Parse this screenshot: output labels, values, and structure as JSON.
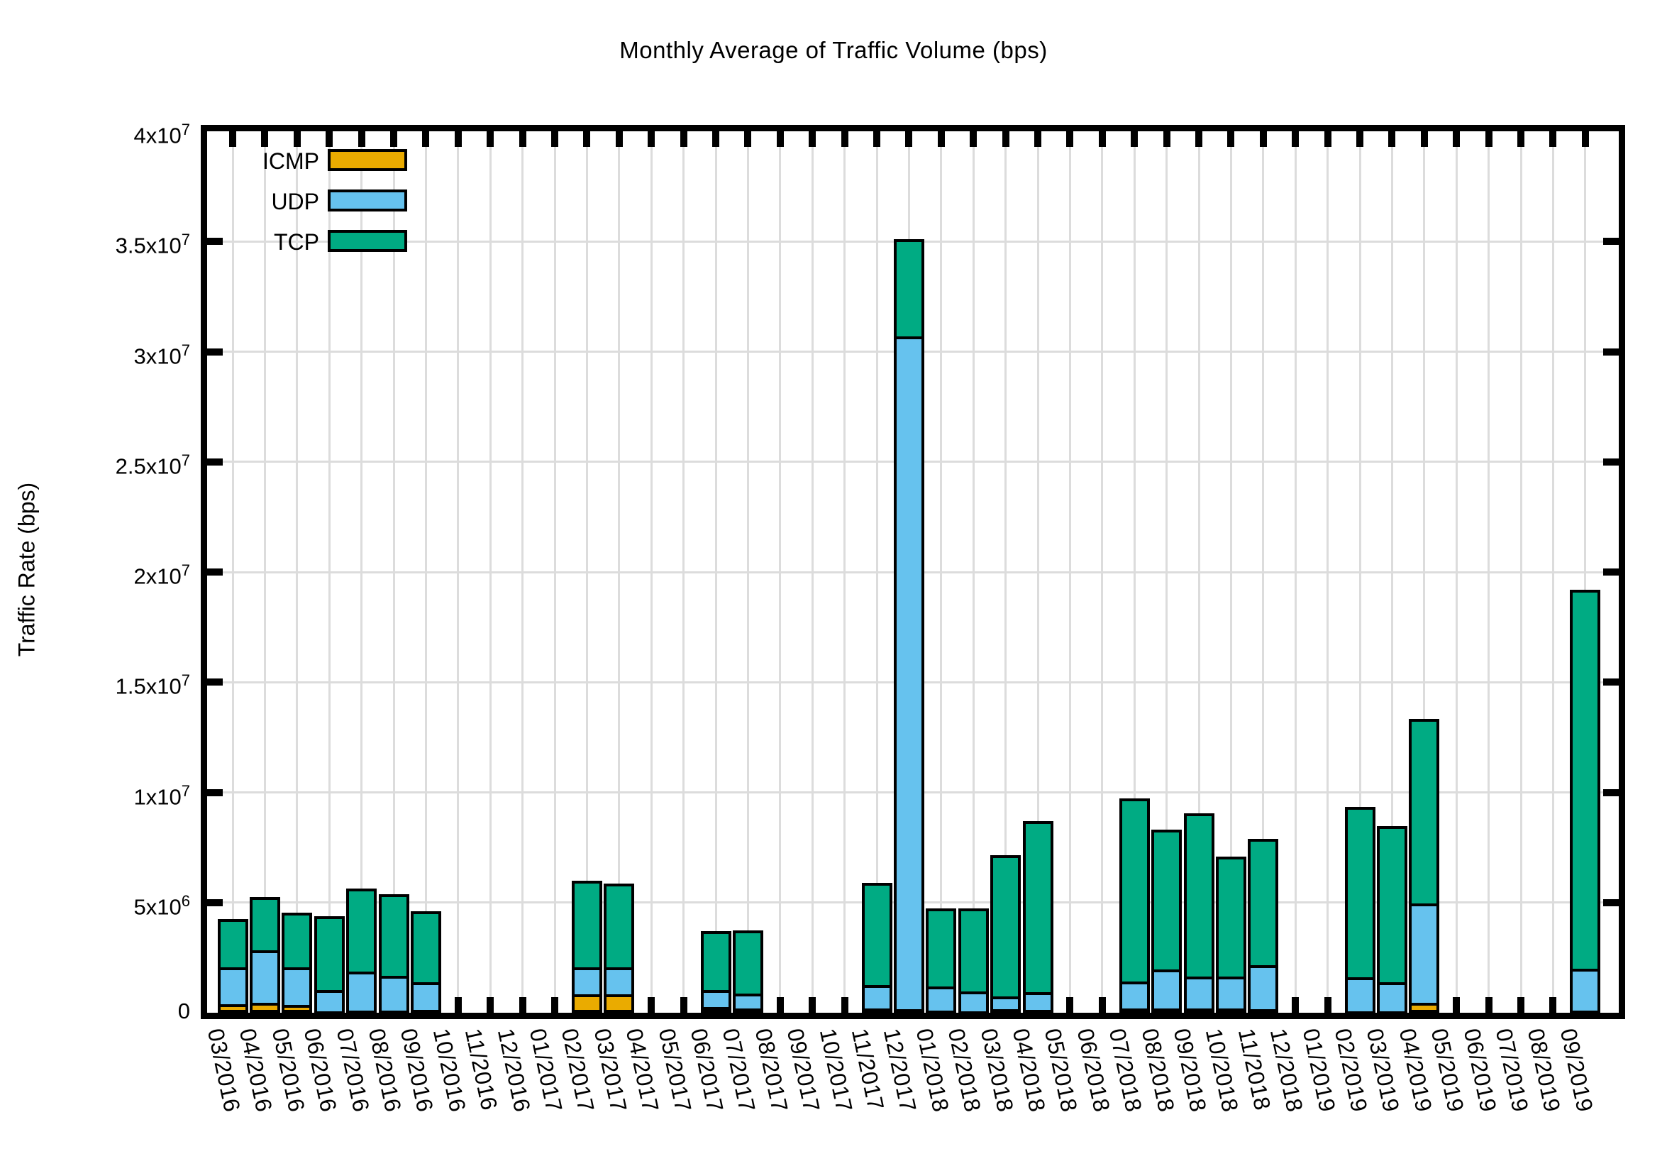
{
  "title": "Monthly Average of Traffic Volume (bps)",
  "y_axis": {
    "label": "Traffic Rate (bps)",
    "ticks": [
      "0",
      "5x10^6",
      "1x10^7",
      "1.5x10^7",
      "2x10^7",
      "2.5x10^7",
      "3x10^7",
      "3.5x10^7",
      "4x10^7"
    ],
    "max_bps": 40000000
  },
  "legend": {
    "entries": [
      {
        "name": "ICMP",
        "color": "#EAAB00"
      },
      {
        "name": "UDP",
        "color": "#66C2EE"
      },
      {
        "name": "TCP",
        "color": "#00AB83"
      }
    ]
  },
  "colors": {
    "icmp": "#EAAB00",
    "udp": "#66C2EE",
    "tcp": "#00AB83",
    "grid": "#dcdcdc",
    "axis": "#000000"
  },
  "chart_data": {
    "type": "bar",
    "stacked": true,
    "title": "Monthly Average of Traffic Volume (bps)",
    "xlabel": "",
    "ylabel": "Traffic Rate (bps)",
    "ylim": [
      0,
      40000000
    ],
    "grid": true,
    "legend_position": "top-left-inside",
    "x_tick_rotation_deg": 78,
    "categories": [
      "03/2016",
      "04/2016",
      "05/2016",
      "06/2016",
      "07/2016",
      "08/2016",
      "09/2016",
      "10/2016",
      "11/2016",
      "12/2016",
      "01/2017",
      "02/2017",
      "03/2017",
      "04/2017",
      "05/2017",
      "06/2017",
      "07/2017",
      "08/2017",
      "09/2017",
      "10/2017",
      "11/2017",
      "12/2017",
      "01/2018",
      "02/2018",
      "03/2018",
      "04/2018",
      "05/2018",
      "06/2018",
      "07/2018",
      "08/2018",
      "09/2018",
      "10/2018",
      "11/2018",
      "12/2018",
      "01/2019",
      "02/2019",
      "03/2019",
      "04/2019",
      "05/2019",
      "06/2019",
      "07/2019",
      "08/2019",
      "09/2019"
    ],
    "series": [
      {
        "name": "ICMP",
        "color": "#EAAB00",
        "values": [
          400000,
          450000,
          350000,
          80000,
          100000,
          100000,
          120000,
          0,
          0,
          0,
          0,
          850000,
          850000,
          0,
          0,
          250000,
          200000,
          0,
          0,
          0,
          200000,
          150000,
          100000,
          80000,
          150000,
          120000,
          0,
          0,
          180000,
          200000,
          180000,
          200000,
          150000,
          0,
          0,
          50000,
          80000,
          450000,
          0,
          0,
          0,
          0,
          100000
        ]
      },
      {
        "name": "UDP",
        "color": "#66C2EE",
        "values": [
          1650000,
          2400000,
          1700000,
          950000,
          1780000,
          1570000,
          1250000,
          0,
          0,
          0,
          0,
          1200000,
          1200000,
          0,
          0,
          780000,
          680000,
          0,
          0,
          0,
          1050000,
          30550000,
          1100000,
          900000,
          600000,
          820000,
          0,
          0,
          1250000,
          1750000,
          1470000,
          1450000,
          2000000,
          0,
          0,
          1550000,
          1300000,
          4500000,
          0,
          0,
          0,
          0,
          1900000
        ]
      },
      {
        "name": "TCP",
        "color": "#00AB83",
        "values": [
          2200000,
          2400000,
          2500000,
          3350000,
          3770000,
          3700000,
          3250000,
          0,
          0,
          0,
          0,
          3950000,
          3800000,
          0,
          0,
          2670000,
          2870000,
          0,
          0,
          0,
          4650000,
          4400000,
          3550000,
          3770000,
          6400000,
          7760000,
          0,
          0,
          8300000,
          6350000,
          7400000,
          5450000,
          5750000,
          0,
          0,
          7750000,
          7100000,
          8400000,
          0,
          0,
          0,
          0,
          17200000
        ]
      }
    ]
  }
}
